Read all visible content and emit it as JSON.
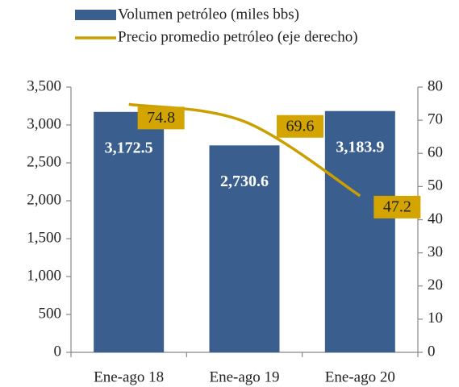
{
  "chart_data": {
    "type": "bar",
    "categories": [
      "Ene-ago 18",
      "Ene-ago 19",
      "Ene-ago 20"
    ],
    "series": [
      {
        "name": "Volumen petróleo (miles bbs)",
        "color": "#3a5f8f",
        "values": [
          3172.5,
          2730.6,
          3183.9
        ],
        "value_labels": [
          "3,172.5",
          "2,730.6",
          "3,183.9"
        ]
      },
      {
        "name": "Precio promedio  petróleo (eje derecho)",
        "type": "line",
        "axis": "y2",
        "color": "#cc9f00",
        "label_color": "#d4a500",
        "values": [
          74.8,
          69.6,
          47.2
        ]
      }
    ],
    "ylim": [
      0,
      3500
    ],
    "yticks": [
      0,
      500,
      {
        "value": 1000,
        "label": "1,000"
      },
      {
        "value": 1500,
        "label": "1,500"
      },
      {
        "value": 2000,
        "label": "2,000"
      },
      {
        "value": 2500,
        "label": "2,500"
      },
      {
        "value": 3000,
        "label": "3,000"
      },
      {
        "value": 3500,
        "label": "3,500"
      }
    ],
    "y2lim": [
      0,
      80
    ],
    "y2ticks": [
      0,
      10,
      20,
      30,
      40,
      50,
      60,
      70,
      80
    ],
    "legend": "top"
  }
}
